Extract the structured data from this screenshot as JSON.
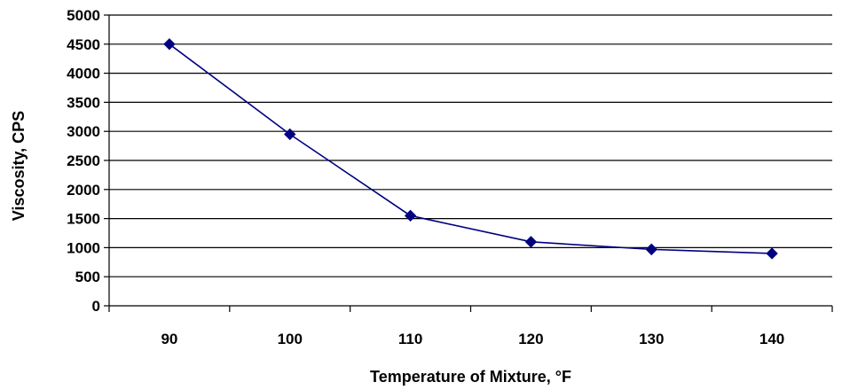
{
  "chart_data": {
    "type": "line",
    "title": "",
    "xlabel": "Temperature of Mixture, °F",
    "ylabel": "Viscosity, CPS",
    "categories": [
      "90",
      "100",
      "110",
      "120",
      "130",
      "140"
    ],
    "series": [
      {
        "values": [
          4500,
          2950,
          1550,
          1100,
          970,
          900
        ]
      }
    ],
    "ylim": [
      0,
      5000
    ],
    "yticks": [
      0,
      500,
      1000,
      1500,
      2000,
      2500,
      3000,
      3500,
      4000,
      4500,
      5000
    ],
    "grid": true,
    "legend": "none",
    "line_color": "#000080",
    "marker": "diamond"
  }
}
